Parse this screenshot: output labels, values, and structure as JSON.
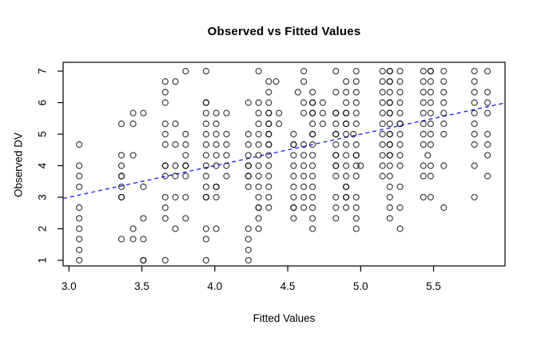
{
  "chart_data": {
    "type": "scatter",
    "title": "Observed vs Fitted Values",
    "xlabel": "Fitted Values",
    "ylabel": "Observed DV",
    "xlim": [
      2.96,
      5.99
    ],
    "ylim": [
      0.82,
      7.28
    ],
    "x_tick_values": [
      3.0,
      3.5,
      4.0,
      4.5,
      5.0,
      5.5
    ],
    "x_tick_labels": [
      "3.0",
      "3.5",
      "4.0",
      "4.5",
      "5.0",
      "5.5"
    ],
    "y_tick_values": [
      1,
      2,
      3,
      4,
      5,
      6,
      7
    ],
    "y_tick_labels": [
      "1",
      "2",
      "3",
      "4",
      "5",
      "6",
      "7"
    ],
    "grid": "off",
    "legend": "none",
    "point_style": {
      "shape": "open-circle",
      "color": "#000000"
    },
    "reference_line": {
      "kind": "identity",
      "intercept": 0,
      "slope": 1,
      "style": "dashed",
      "color": "#1a1aff"
    },
    "series_by_level": [
      {
        "y": 7.0,
        "x": [
          3.8,
          3.94,
          4.3,
          4.61,
          4.83,
          4.97,
          5.15,
          5.2,
          5.2,
          5.27,
          5.43,
          5.48,
          5.48,
          5.57,
          5.78,
          5.87
        ]
      },
      {
        "y": 6.67,
        "x": [
          3.66,
          3.73,
          4.37,
          4.42,
          4.61,
          4.9,
          4.97,
          5.15,
          5.2,
          5.2,
          5.27,
          5.43,
          5.48,
          5.57,
          5.78
        ]
      },
      {
        "y": 6.33,
        "x": [
          3.66,
          4.37,
          4.57,
          4.67,
          4.83,
          4.9,
          4.97,
          5.15,
          5.2,
          5.27,
          5.43,
          5.48,
          5.57,
          5.78,
          5.87
        ]
      },
      {
        "y": 6.0,
        "x": [
          3.66,
          3.94,
          3.94,
          4.23,
          4.3,
          4.37,
          4.61,
          4.67,
          4.67,
          4.74,
          4.9,
          4.97,
          5.15,
          5.2,
          5.2,
          5.27,
          5.43,
          5.48,
          5.57,
          5.78,
          5.87
        ]
      },
      {
        "y": 5.67,
        "x": [
          3.44,
          3.51,
          3.94,
          4.01,
          4.08,
          4.3,
          4.37,
          4.37,
          4.44,
          4.61,
          4.67,
          4.67,
          4.74,
          4.83,
          4.83,
          4.9,
          4.9,
          4.97,
          5.15,
          5.2,
          5.2,
          5.27,
          5.43,
          5.48,
          5.57,
          5.78,
          5.87
        ]
      },
      {
        "y": 5.33,
        "x": [
          3.36,
          3.44,
          3.66,
          3.73,
          3.94,
          4.01,
          4.3,
          4.37,
          4.37,
          4.44,
          4.67,
          4.74,
          4.83,
          4.9,
          4.9,
          4.97,
          5.15,
          5.2,
          5.27,
          5.27,
          5.43,
          5.48,
          5.57,
          5.78
        ]
      },
      {
        "y": 5.0,
        "x": [
          3.66,
          3.8,
          3.94,
          4.01,
          4.08,
          4.23,
          4.3,
          4.37,
          4.37,
          4.54,
          4.67,
          4.67,
          4.83,
          4.83,
          4.9,
          4.95,
          5.15,
          5.2,
          5.2,
          5.27,
          5.43,
          5.48,
          5.57,
          5.78,
          5.87
        ]
      },
      {
        "y": 4.67,
        "x": [
          3.07,
          3.66,
          3.73,
          3.8,
          3.94,
          4.01,
          4.08,
          4.23,
          4.3,
          4.37,
          4.37,
          4.54,
          4.54,
          4.61,
          4.67,
          4.83,
          4.9,
          4.97,
          5.15,
          5.2,
          5.2,
          5.27,
          5.43,
          5.48,
          5.78,
          5.87
        ]
      },
      {
        "y": 4.33,
        "x": [
          3.36,
          3.44,
          3.8,
          3.94,
          4.01,
          4.08,
          4.23,
          4.3,
          4.37,
          4.54,
          4.61,
          4.67,
          4.83,
          4.83,
          4.9,
          4.97,
          4.97,
          5.15,
          5.2,
          5.2,
          5.27,
          5.46,
          5.87
        ]
      },
      {
        "y": 4.0,
        "x": [
          3.07,
          3.36,
          3.66,
          3.66,
          3.73,
          3.8,
          3.8,
          3.94,
          4.01,
          4.08,
          4.23,
          4.23,
          4.3,
          4.37,
          4.54,
          4.61,
          4.67,
          4.83,
          4.83,
          4.9,
          4.97,
          5.0,
          5.15,
          5.2,
          5.27,
          5.43,
          5.48,
          5.57,
          5.78
        ]
      },
      {
        "y": 3.67,
        "x": [
          3.07,
          3.36,
          3.36,
          3.66,
          3.73,
          3.8,
          3.94,
          4.08,
          4.23,
          4.23,
          4.3,
          4.37,
          4.54,
          4.61,
          4.67,
          4.83,
          4.9,
          4.97,
          5.15,
          5.2,
          5.43,
          5.48,
          5.87
        ]
      },
      {
        "y": 3.33,
        "x": [
          3.07,
          3.36,
          3.51,
          3.94,
          4.01,
          4.01,
          4.23,
          4.3,
          4.37,
          4.54,
          4.61,
          4.67,
          4.9,
          4.9,
          5.2,
          5.27
        ]
      },
      {
        "y": 3.0,
        "x": [
          3.36,
          3.36,
          3.66,
          3.73,
          3.8,
          3.94,
          3.94,
          4.01,
          4.3,
          4.37,
          4.54,
          4.61,
          4.67,
          4.83,
          4.9,
          4.9,
          4.97,
          5.2,
          5.43,
          5.48,
          5.78
        ]
      },
      {
        "y": 2.67,
        "x": [
          3.07,
          3.66,
          4.3,
          4.3,
          4.37,
          4.54,
          4.54,
          4.61,
          4.67,
          4.83,
          4.9,
          4.97,
          5.2,
          5.27,
          5.57
        ]
      },
      {
        "y": 2.33,
        "x": [
          3.07,
          3.51,
          3.66,
          3.8,
          4.3,
          4.54,
          4.67,
          4.83,
          4.97,
          5.2
        ]
      },
      {
        "y": 2.0,
        "x": [
          3.07,
          3.44,
          3.73,
          3.94,
          4.01,
          4.23,
          4.3,
          4.67,
          4.97,
          5.27
        ]
      },
      {
        "y": 1.67,
        "x": [
          3.07,
          3.36,
          3.44,
          3.51,
          3.94,
          4.23
        ]
      },
      {
        "y": 1.33,
        "x": [
          3.07,
          4.23
        ]
      },
      {
        "y": 1.0,
        "x": [
          3.07,
          3.51,
          3.51,
          3.66,
          3.94,
          4.23
        ]
      }
    ]
  }
}
